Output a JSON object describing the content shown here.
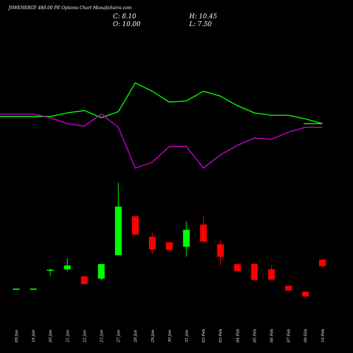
{
  "header": {
    "title": "JSWENERGY 480.00 PE Options Chart MunafaSutra.com",
    "close_label": "C: 8.10",
    "open_label": "O: 10.00",
    "high_label": "H: 10.45",
    "low_label": "L: 7.50"
  },
  "colors": {
    "up": "#00ff00",
    "down": "#ff0000",
    "line_green": "#00ff00",
    "line_magenta": "#cc00cc",
    "background": "#000000"
  },
  "chart_data": [
    {
      "type": "line",
      "x": [
        "09 Jan",
        "16 Jan",
        "20 Jan",
        "21 Jan",
        "22 Jan",
        "23 Jan",
        "27 Jan",
        "28 Jan",
        "29 Jan",
        "30 Jan",
        "31 Jan",
        "03 Feb",
        "03 Feb",
        "04 Feb",
        "05 Feb",
        "06 Feb",
        "07 Feb",
        "09 Feb",
        "10 Feb"
      ],
      "series": [
        {
          "color": "#00ff00",
          "values": [
            0.5,
            0.5,
            0.5,
            0.47,
            0.45,
            0.51,
            0.46,
            0.22,
            0.29,
            0.38,
            0.37,
            0.29,
            0.33,
            0.41,
            0.47,
            0.49,
            0.49,
            0.52,
            0.56
          ]
        },
        {
          "color": "#cc00cc",
          "values": [
            0.48,
            0.48,
            0.51,
            0.56,
            0.58,
            0.48,
            0.59,
            0.93,
            0.88,
            0.75,
            0.75,
            0.93,
            0.82,
            0.74,
            0.68,
            0.69,
            0.63,
            0.59,
            0.59
          ]
        }
      ]
    },
    {
      "type": "candlestick",
      "x": [
        "09 Jan",
        "16 Jan",
        "20 Jan",
        "21 Jan",
        "22 Jan",
        "23 Jan",
        "27 Jan",
        "28 Jan",
        "29 Jan",
        "30 Jan",
        "31 Jan",
        "03 Feb",
        "03 Feb",
        "04 Feb",
        "05 Feb",
        "06 Feb",
        "07 Feb",
        "09 Feb",
        "10 Feb"
      ],
      "x_tick_labels": [
        "09 Jan",
        "16 Jan",
        "20 Jan",
        "21 Jan",
        "22 Jan",
        "23 Jan",
        "27 Jan",
        "28 Jan",
        "29 Jan",
        "30 Jan",
        "31 Jan",
        "03 Feb",
        "03 Feb",
        "04 Feb",
        "05 Feb",
        "06 Feb",
        "07 Feb",
        "09 Feb",
        "10 Feb"
      ],
      "candles": [
        {
          "o": 1.0,
          "h": 1.0,
          "l": 1.0,
          "c": 1.0
        },
        {
          "o": 1.0,
          "h": 1.0,
          "l": 1.0,
          "c": 1.0
        },
        {
          "o": 6.8,
          "h": 7.2,
          "l": 5.0,
          "c": 6.9
        },
        {
          "o": 7.1,
          "h": 10.5,
          "l": 6.4,
          "c": 8.2
        },
        {
          "o": 4.8,
          "h": 4.8,
          "l": 2.5,
          "c": 2.5
        },
        {
          "o": 4.2,
          "h": 8.7,
          "l": 3.6,
          "c": 8.6
        },
        {
          "o": 11.5,
          "h": 34.0,
          "l": 11.5,
          "c": 26.5
        },
        {
          "o": 23.5,
          "h": 23.5,
          "l": 17.6,
          "c": 17.9
        },
        {
          "o": 17.1,
          "h": 18.4,
          "l": 11.8,
          "c": 13.3
        },
        {
          "o": 15.4,
          "h": 15.4,
          "l": 12.9,
          "c": 13.1
        },
        {
          "o": 14.1,
          "h": 22.0,
          "l": 11.0,
          "c": 19.3
        },
        {
          "o": 20.9,
          "h": 23.6,
          "l": 15.3,
          "c": 15.7
        },
        {
          "o": 14.8,
          "h": 16.0,
          "l": 8.3,
          "c": 11.0
        },
        {
          "o": 8.6,
          "h": 8.6,
          "l": 6.5,
          "c": 6.5
        },
        {
          "o": 8.7,
          "h": 8.7,
          "l": 3.5,
          "c": 3.8
        },
        {
          "o": 7.0,
          "h": 8.2,
          "l": 3.6,
          "c": 3.9
        },
        {
          "o": 1.9,
          "h": 1.9,
          "l": 0.5,
          "c": 0.5
        },
        {
          "o": 0.0,
          "h": 0.0,
          "l": -1.4,
          "c": -1.4
        },
        {
          "o": 10.0,
          "h": 10.45,
          "l": 7.5,
          "c": 8.1
        }
      ]
    }
  ]
}
